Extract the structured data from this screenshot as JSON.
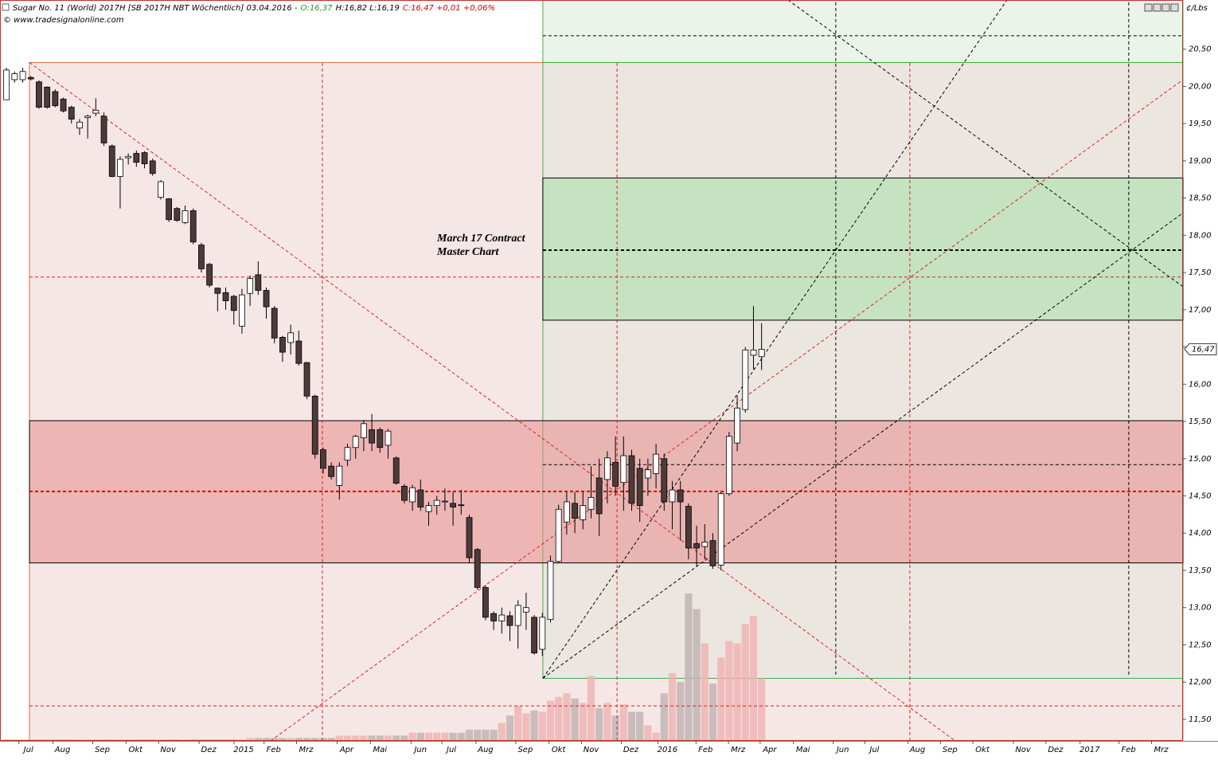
{
  "chart_data": {
    "type": "candlestick",
    "title_parts": [
      {
        "text": "Sugar No. 11 (World) 2017H [SB 2017H NBT  Wöchentlich] 03.04.2016 -",
        "color": "#000000"
      },
      {
        "text": "O:16,37",
        "color": "#1f9a1f"
      },
      {
        "text": "H:16,82 L:16,19",
        "color": "#000000"
      },
      {
        "text": "C:16,47 +0,01 +0,06%",
        "color": "#d40000"
      }
    ],
    "subtitle": "© www.tradesignalonline.com",
    "annotation": [
      "March 17 Contract",
      "Master Chart"
    ],
    "y_unit": "¢/Lbs",
    "last_price": {
      "value": 16.47,
      "label": "16,47"
    },
    "xlim": [
      0.2,
      145.9
    ],
    "ylim": [
      11.21,
      21.16
    ],
    "xticks": [
      {
        "value": 3.7,
        "label": "Jul"
      },
      {
        "value": 7.9,
        "label": "Aug"
      },
      {
        "value": 12.8,
        "label": "Sep"
      },
      {
        "value": 16.9,
        "label": "Okt"
      },
      {
        "value": 20.9,
        "label": "Nov"
      },
      {
        "value": 25.9,
        "label": "Dez"
      },
      {
        "value": 30.2,
        "label": "2015"
      },
      {
        "value": 33.9,
        "label": "Feb"
      },
      {
        "value": 37.9,
        "label": "Mrz"
      },
      {
        "value": 42.9,
        "label": "Apr"
      },
      {
        "value": 47.0,
        "label": "Mai"
      },
      {
        "value": 52.0,
        "label": "Jun"
      },
      {
        "value": 55.8,
        "label": "Jul"
      },
      {
        "value": 60.0,
        "label": "Aug"
      },
      {
        "value": 64.9,
        "label": "Sep"
      },
      {
        "value": 69.0,
        "label": "Okt"
      },
      {
        "value": 73.0,
        "label": "Nov"
      },
      {
        "value": 77.9,
        "label": "Dez"
      },
      {
        "value": 82.4,
        "label": "2016"
      },
      {
        "value": 87.1,
        "label": "Feb"
      },
      {
        "value": 91.1,
        "label": "Mrz"
      },
      {
        "value": 95.0,
        "label": "Apr"
      },
      {
        "value": 99.1,
        "label": "Mai"
      },
      {
        "value": 104.0,
        "label": "Jun"
      },
      {
        "value": 107.9,
        "label": "Jul"
      },
      {
        "value": 113.2,
        "label": "Aug"
      },
      {
        "value": 117.2,
        "label": "Sep"
      },
      {
        "value": 121.2,
        "label": "Okt"
      },
      {
        "value": 126.2,
        "label": "Nov"
      },
      {
        "value": 130.2,
        "label": "Dez"
      },
      {
        "value": 134.4,
        "label": "2017"
      },
      {
        "value": 139.2,
        "label": "Feb"
      },
      {
        "value": 143.2,
        "label": "Mrz"
      }
    ],
    "yticks": [
      {
        "value": 11.5,
        "label": "11,50"
      },
      {
        "value": 12,
        "label": "12,00"
      },
      {
        "value": 12.5,
        "label": "12,50"
      },
      {
        "value": 13,
        "label": "13,00"
      },
      {
        "value": 13.5,
        "label": "13,50"
      },
      {
        "value": 14,
        "label": "14,00"
      },
      {
        "value": 14.5,
        "label": "14,50"
      },
      {
        "value": 15,
        "label": "15,00"
      },
      {
        "value": 15.5,
        "label": "15,50"
      },
      {
        "value": 16,
        "label": "16,00"
      },
      {
        "value": 16.5,
        "label": "16,50"
      },
      {
        "value": 17,
        "label": "17,00"
      },
      {
        "value": 17.5,
        "label": "17,50"
      },
      {
        "value": 18,
        "label": "18,00"
      },
      {
        "value": 18.5,
        "label": "18,50"
      },
      {
        "value": 19,
        "label": "19,00"
      },
      {
        "value": 19.5,
        "label": "19,50"
      },
      {
        "value": 20,
        "label": "20,00"
      },
      {
        "value": 20.5,
        "label": "20,50"
      }
    ],
    "up_color": "#ffffff",
    "down_color": "#4d3b3b",
    "volume_up_color": "#f0b4b4",
    "volume_down_color": "#c2b4b4",
    "x": [
      1,
      2,
      3,
      4,
      5,
      6,
      7,
      8,
      9,
      10,
      11,
      12,
      13,
      14,
      15,
      16,
      17,
      18,
      19,
      20,
      21,
      22,
      23,
      24,
      25,
      26,
      27,
      28,
      29,
      30,
      31,
      32,
      33,
      34,
      35,
      36,
      37,
      38,
      39,
      40,
      41,
      42,
      43,
      44,
      45,
      46,
      47,
      48,
      49,
      50,
      51,
      52,
      53,
      54,
      55,
      56,
      57,
      58,
      59,
      60,
      61,
      62,
      63,
      64,
      65,
      66,
      67,
      68,
      69,
      70,
      71,
      72,
      73,
      74,
      75,
      76,
      77,
      78,
      79,
      80,
      81,
      82,
      83,
      84,
      85,
      86,
      87,
      88,
      89,
      90,
      91,
      92,
      93,
      94
    ],
    "ohlc": [
      [
        19.82,
        20.25,
        19.82,
        20.22
      ],
      [
        20.09,
        20.2,
        20.05,
        20.17
      ],
      [
        20.09,
        20.25,
        20.05,
        20.2
      ],
      [
        20.12,
        20.14,
        20.08,
        20.1
      ],
      [
        20.06,
        20.08,
        19.7,
        19.72
      ],
      [
        19.99,
        20.0,
        19.7,
        19.72
      ],
      [
        19.93,
        19.96,
        19.72,
        19.74
      ],
      [
        19.83,
        19.85,
        19.65,
        19.67
      ],
      [
        19.72,
        19.74,
        19.5,
        19.56
      ],
      [
        19.44,
        19.56,
        19.35,
        19.52
      ],
      [
        19.58,
        19.62,
        19.3,
        19.6
      ],
      [
        19.64,
        19.84,
        19.6,
        19.68
      ],
      [
        19.6,
        19.65,
        19.2,
        19.24
      ],
      [
        19.2,
        19.22,
        18.78,
        18.79
      ],
      [
        18.79,
        19.06,
        18.36,
        19.02
      ],
      [
        19.04,
        19.1,
        18.95,
        19.06
      ],
      [
        19.1,
        19.14,
        18.92,
        18.98
      ],
      [
        19.11,
        19.13,
        18.9,
        18.96
      ],
      [
        19.0,
        19.03,
        18.8,
        18.83
      ],
      [
        18.51,
        18.74,
        18.48,
        18.72
      ],
      [
        18.49,
        18.5,
        18.18,
        18.21
      ],
      [
        18.36,
        18.38,
        18.18,
        18.2
      ],
      [
        18.17,
        18.4,
        18.15,
        18.33
      ],
      [
        18.33,
        18.36,
        17.88,
        17.91
      ],
      [
        17.87,
        17.9,
        17.5,
        17.55
      ],
      [
        17.61,
        17.63,
        17.3,
        17.33
      ],
      [
        17.29,
        17.3,
        16.98,
        17.22
      ],
      [
        17.23,
        17.3,
        17.0,
        17.12
      ],
      [
        17.18,
        17.2,
        16.8,
        16.99
      ],
      [
        16.78,
        17.28,
        16.68,
        17.2
      ],
      [
        17.22,
        17.46,
        17.05,
        17.42
      ],
      [
        17.47,
        17.65,
        17.2,
        17.26
      ],
      [
        17.26,
        17.3,
        16.88,
        17.04
      ],
      [
        17.02,
        17.05,
        16.55,
        16.62
      ],
      [
        16.63,
        16.65,
        16.3,
        16.43
      ],
      [
        16.56,
        16.8,
        16.4,
        16.69
      ],
      [
        16.58,
        16.72,
        16.25,
        16.28
      ],
      [
        16.29,
        16.3,
        15.8,
        15.84
      ],
      [
        15.84,
        15.86,
        15.0,
        15.06
      ],
      [
        15.12,
        15.15,
        14.8,
        14.87
      ],
      [
        14.9,
        14.95,
        14.72,
        14.76
      ],
      [
        14.64,
        14.95,
        14.45,
        14.9
      ],
      [
        14.98,
        15.2,
        14.9,
        15.15
      ],
      [
        15.15,
        15.32,
        15.0,
        15.3
      ],
      [
        15.28,
        15.52,
        15.1,
        15.47
      ],
      [
        15.39,
        15.6,
        15.1,
        15.21
      ],
      [
        15.39,
        15.42,
        15.08,
        15.15
      ],
      [
        15.18,
        15.4,
        15.0,
        15.37
      ],
      [
        15.01,
        15.03,
        14.65,
        14.67
      ],
      [
        14.63,
        14.66,
        14.4,
        14.44
      ],
      [
        14.42,
        14.65,
        14.3,
        14.61
      ],
      [
        14.58,
        14.72,
        14.3,
        14.35
      ],
      [
        14.29,
        14.42,
        14.1,
        14.37
      ],
      [
        14.37,
        14.5,
        14.25,
        14.44
      ],
      [
        14.42,
        14.6,
        14.3,
        14.43
      ],
      [
        14.4,
        14.55,
        14.1,
        14.35
      ],
      [
        14.38,
        14.58,
        14.25,
        14.37
      ],
      [
        14.21,
        14.25,
        13.6,
        13.67
      ],
      [
        13.78,
        13.8,
        13.24,
        13.27
      ],
      [
        13.27,
        13.3,
        12.83,
        12.87
      ],
      [
        12.92,
        12.95,
        12.7,
        12.82
      ],
      [
        12.82,
        13.0,
        12.65,
        12.9
      ],
      [
        12.89,
        12.95,
        12.55,
        12.76
      ],
      [
        12.76,
        13.1,
        12.45,
        13.03
      ],
      [
        12.94,
        13.2,
        12.7,
        13.0
      ],
      [
        12.87,
        12.9,
        12.37,
        12.39
      ],
      [
        12.44,
        12.93,
        12.35,
        12.87
      ],
      [
        12.84,
        13.7,
        12.8,
        13.62
      ],
      [
        13.62,
        14.38,
        13.6,
        14.32
      ],
      [
        14.15,
        14.55,
        13.98,
        14.42
      ],
      [
        14.4,
        14.55,
        14.0,
        14.2
      ],
      [
        14.18,
        14.55,
        14.05,
        14.37
      ],
      [
        14.32,
        14.9,
        14.2,
        14.48
      ],
      [
        14.74,
        15.0,
        13.96,
        14.26
      ],
      [
        14.72,
        15.1,
        14.4,
        15.01
      ],
      [
        14.95,
        15.3,
        14.5,
        14.63
      ],
      [
        14.68,
        15.3,
        14.3,
        15.04
      ],
      [
        15.04,
        15.12,
        14.3,
        14.4
      ],
      [
        14.87,
        15.0,
        14.15,
        14.37
      ],
      [
        14.74,
        15.0,
        14.5,
        14.85
      ],
      [
        14.8,
        15.2,
        14.6,
        15.06
      ],
      [
        15.0,
        15.07,
        14.3,
        14.42
      ],
      [
        14.42,
        14.7,
        14.05,
        14.58
      ],
      [
        14.58,
        14.7,
        13.9,
        14.42
      ],
      [
        14.36,
        14.4,
        13.65,
        13.8
      ],
      [
        13.86,
        14.1,
        13.55,
        13.8
      ],
      [
        13.82,
        14.12,
        13.65,
        13.88
      ],
      [
        13.9,
        14.0,
        13.52,
        13.56
      ],
      [
        13.57,
        14.55,
        13.5,
        14.53
      ],
      [
        14.53,
        15.36,
        14.5,
        15.3
      ],
      [
        15.21,
        15.85,
        15.1,
        15.68
      ],
      [
        15.66,
        16.5,
        15.62,
        16.46
      ],
      [
        16.39,
        17.05,
        16.2,
        16.46
      ],
      [
        16.37,
        16.82,
        16.19,
        16.47
      ]
    ],
    "volume": [
      11.23,
      11.23,
      11.23,
      11.23,
      11.23,
      11.23,
      11.23,
      11.23,
      11.23,
      11.23,
      11.23,
      11.23,
      11.23,
      11.23,
      11.23,
      11.23,
      11.23,
      11.23,
      11.23,
      11.23,
      11.23,
      11.23,
      11.23,
      11.23,
      11.23,
      11.23,
      11.23,
      11.23,
      11.23,
      11.23,
      11.25,
      11.25,
      11.25,
      11.25,
      11.25,
      11.25,
      11.25,
      11.25,
      11.25,
      11.25,
      11.25,
      11.28,
      11.28,
      11.28,
      11.28,
      11.28,
      11.28,
      11.28,
      11.28,
      11.28,
      11.32,
      11.32,
      11.32,
      11.32,
      11.32,
      11.32,
      11.32,
      11.36,
      11.36,
      11.36,
      11.36,
      11.45,
      11.55,
      11.68,
      11.58,
      11.62,
      11.6,
      11.75,
      11.8,
      11.85,
      11.78,
      11.72,
      12.08,
      11.65,
      11.72,
      11.55,
      11.7,
      11.6,
      11.6,
      11.42,
      11.32,
      11.85,
      12.12,
      12.0,
      13.19,
      12.98,
      12.52,
      11.98,
      12.33,
      12.55,
      12.52,
      12.78,
      12.89,
      12.05
    ],
    "zones": [
      {
        "x": [
          3.83,
          145.9
        ],
        "y": [
          11.21,
          20.32
        ],
        "color": "#f6e7e7",
        "stroke": "#e07040"
      },
      {
        "x": [
          67.06,
          145.9
        ],
        "y": [
          12.05,
          20.32
        ],
        "color": "#ece6e1",
        "stroke": "#40b040"
      },
      {
        "x": [
          67.06,
          145.9
        ],
        "y": [
          20.32,
          21.16
        ],
        "color": "#ebf4e8",
        "stroke": "#40b040"
      },
      {
        "x": [
          3.83,
          145.9
        ],
        "y": [
          13.6,
          15.51
        ],
        "color": "#e88c8c",
        "stroke": "#000000"
      },
      {
        "x": [
          67.06,
          145.9
        ],
        "y": [
          16.86,
          18.77
        ],
        "color": "#c5e3c0",
        "stroke": "#000000"
      }
    ],
    "hlines": [
      {
        "y": 17.44,
        "x": [
          3.83,
          145.9
        ],
        "color": "#e02020",
        "width": 1
      },
      {
        "y": 14.56,
        "x": [
          3.83,
          145.9
        ],
        "color": "#e00000",
        "width": 2
      },
      {
        "y": 11.68,
        "x": [
          3.83,
          145.9
        ],
        "color": "#e02020",
        "width": 1
      },
      {
        "y": 14.92,
        "x": [
          67.06,
          145.9
        ],
        "color": "#000000",
        "width": 1
      },
      {
        "y": 20.68,
        "x": [
          67.06,
          145.9
        ],
        "color": "#000000",
        "width": 1
      },
      {
        "y": 17.8,
        "x": [
          67.06,
          145.9
        ],
        "color": "#000000",
        "width": 2
      }
    ],
    "vlines": [
      {
        "x": 39.9,
        "y": [
          11.21,
          20.32
        ],
        "color": "#e02020"
      },
      {
        "x": 76.2,
        "y": [
          11.21,
          20.32
        ],
        "color": "#e02020"
      },
      {
        "x": 112.26,
        "y": [
          11.21,
          20.32
        ],
        "color": "#e02020"
      },
      {
        "x": 103.14,
        "y": [
          12.1,
          21.16
        ],
        "color": "#000000"
      },
      {
        "x": 139.22,
        "y": [
          12.1,
          21.16
        ],
        "color": "#000000"
      }
    ],
    "trendlines": [
      {
        "x": [
          3.83,
          117.85
        ],
        "y": [
          20.32,
          11.21
        ],
        "color": "#e02020"
      },
      {
        "x": [
          33.53,
          145.9
        ],
        "y": [
          11.21,
          20.09
        ],
        "color": "#e02020"
      },
      {
        "x": [
          67.06,
          124.22
        ],
        "y": [
          12.05,
          21.16
        ],
        "color": "#000000"
      },
      {
        "x": [
          67.06,
          145.9
        ],
        "y": [
          12.05,
          18.3
        ],
        "color": "#000000"
      },
      {
        "x": [
          97.26,
          145.9
        ],
        "y": [
          21.16,
          17.31
        ],
        "color": "#000000"
      }
    ]
  }
}
